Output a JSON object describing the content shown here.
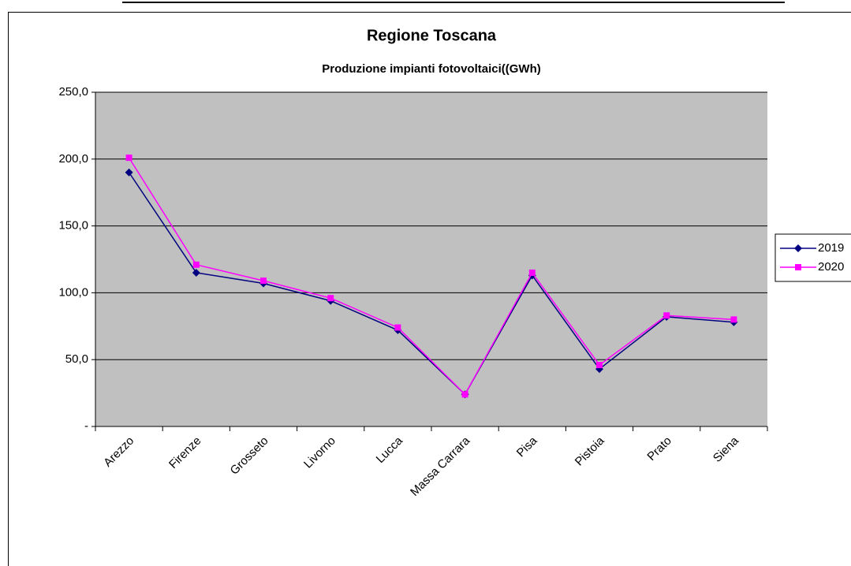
{
  "chart_data": {
    "type": "line",
    "title": "Regione Toscana",
    "subtitle": "Produzione impianti fotovoltaici((GWh)",
    "categories": [
      "Arezzo",
      "Firenze",
      "Grosseto",
      "Livorno",
      "Lucca",
      "Massa Carrara",
      "Pisa",
      "Pistoia",
      "Prato",
      "Siena"
    ],
    "series": [
      {
        "name": "2019",
        "color": "#000080",
        "marker": "diamond",
        "values": [
          190,
          115,
          107,
          94,
          72,
          24,
          113,
          43,
          82,
          78
        ]
      },
      {
        "name": "2020",
        "color": "#ff00ff",
        "marker": "square",
        "values": [
          201,
          121,
          109,
          96,
          74,
          24,
          115,
          46,
          83,
          80
        ]
      }
    ],
    "ylim": [
      0,
      250
    ],
    "yticks": [
      {
        "value": 0,
        "label": "-"
      },
      {
        "value": 50,
        "label": "50,0"
      },
      {
        "value": 100,
        "label": "100,0"
      },
      {
        "value": 150,
        "label": "150,0"
      },
      {
        "value": 200,
        "label": "200,0"
      },
      {
        "value": 250,
        "label": "250,0"
      }
    ],
    "grid": true,
    "legend": "right"
  }
}
